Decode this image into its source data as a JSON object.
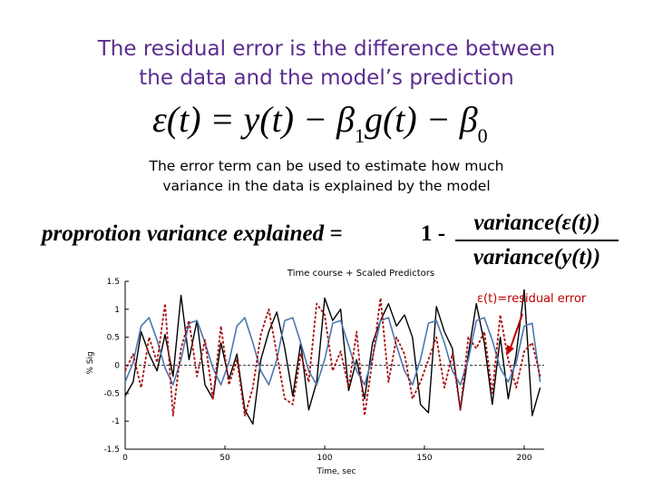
{
  "slide": {
    "title_line1": "The residual error is the difference between",
    "title_line2": "the data and the model’s prediction",
    "equation1": {
      "lhs": "ε(t)",
      "eq": "=",
      "y": "y(t)",
      "minus1": "−",
      "beta1": "β",
      "sub1": "1",
      "g": "g(t)",
      "minus2": "−",
      "beta0": "β",
      "sub0": "0"
    },
    "body_line1": "The error term can be used to estimate how much",
    "body_line2": "variance in the data is explained by the model",
    "equation2": {
      "lhs": "proprotion variance explained =",
      "one": "1 -",
      "numerator": "variance(ε(t))",
      "denominator": "variance(y(t))"
    },
    "annotation": "ε(t)=residual error"
  },
  "chart_data": {
    "type": "line",
    "title": "Time course + Scaled Predictors",
    "xlabel": "Time, sec",
    "ylabel": "% Sig",
    "xlim": [
      0,
      210
    ],
    "ylim": [
      -1.5,
      1.5
    ],
    "x_ticks": [
      0,
      50,
      100,
      150,
      200
    ],
    "y_ticks": [
      1.5,
      1,
      0.5,
      0,
      -0.5,
      -1,
      -1.5
    ],
    "y_tick_labels": [
      "1.5",
      "1",
      "0.5",
      "0",
      "-0.5",
      "-1",
      "-1.5"
    ],
    "dashed_zero_line": true,
    "colors": {
      "data": "#000000",
      "model": "#4a78b0",
      "residual": "#aa1111",
      "annotation": "#c00000"
    },
    "x": [
      0,
      4,
      8,
      12,
      16,
      20,
      24,
      28,
      32,
      36,
      40,
      44,
      48,
      52,
      56,
      60,
      64,
      68,
      72,
      76,
      80,
      84,
      88,
      92,
      96,
      100,
      104,
      108,
      112,
      116,
      120,
      124,
      128,
      132,
      136,
      140,
      144,
      148,
      152,
      156,
      160,
      164,
      168,
      172,
      176,
      180,
      184,
      188,
      192,
      196,
      200,
      204,
      208
    ],
    "series": [
      {
        "name": "",
        "style": "solid-black",
        "values": [
          -0.55,
          -0.3,
          0.6,
          0.2,
          -0.1,
          0.55,
          -0.2,
          1.25,
          0.1,
          0.8,
          -0.35,
          -0.6,
          0.4,
          -0.25,
          0.2,
          -0.8,
          -1.05,
          0.1,
          0.6,
          0.95,
          0.3,
          -0.55,
          0.4,
          -0.8,
          -0.3,
          1.2,
          0.8,
          1.0,
          -0.45,
          0.1,
          -0.6,
          0.4,
          0.8,
          1.1,
          0.7,
          0.9,
          0.5,
          -0.7,
          -0.85,
          1.05,
          0.6,
          0.3,
          -0.8,
          0.2,
          1.1,
          0.4,
          -0.7,
          0.5,
          -0.6,
          0.2,
          1.35,
          -0.9,
          -0.4
        ]
      },
      {
        "name": "",
        "style": "solid-blue",
        "values": [
          -0.3,
          0.05,
          0.7,
          0.85,
          0.45,
          -0.05,
          -0.35,
          0.1,
          0.75,
          0.8,
          0.4,
          -0.05,
          -0.35,
          0.05,
          0.7,
          0.85,
          0.4,
          -0.1,
          -0.35,
          0.1,
          0.8,
          0.85,
          0.4,
          -0.1,
          -0.35,
          0.1,
          0.75,
          0.8,
          0.35,
          -0.1,
          -0.35,
          0.15,
          0.8,
          0.85,
          0.35,
          -0.1,
          -0.35,
          0.1,
          0.75,
          0.8,
          0.4,
          -0.1,
          -0.35,
          0.1,
          0.8,
          0.85,
          0.45,
          -0.05,
          -0.3,
          0.05,
          0.7,
          0.75,
          -0.3
        ]
      },
      {
        "name": "",
        "style": "dashed-red",
        "values": [
          -0.1,
          0.2,
          -0.4,
          0.5,
          0.05,
          1.1,
          -0.9,
          0.3,
          0.8,
          -0.2,
          0.45,
          -0.6,
          0.7,
          -0.35,
          0.1,
          -0.9,
          -0.4,
          0.55,
          1.0,
          0.2,
          -0.6,
          -0.7,
          0.2,
          -0.3,
          1.1,
          0.9,
          -0.1,
          0.25,
          -0.4,
          0.6,
          -0.9,
          0.1,
          1.2,
          -0.3,
          0.5,
          0.2,
          -0.6,
          -0.3,
          0.1,
          0.5,
          -0.4,
          0.2,
          -0.8,
          0.5,
          0.3,
          0.6,
          -0.5,
          0.9,
          0.1,
          -0.4,
          0.25,
          0.4,
          -0.2
        ]
      }
    ]
  }
}
